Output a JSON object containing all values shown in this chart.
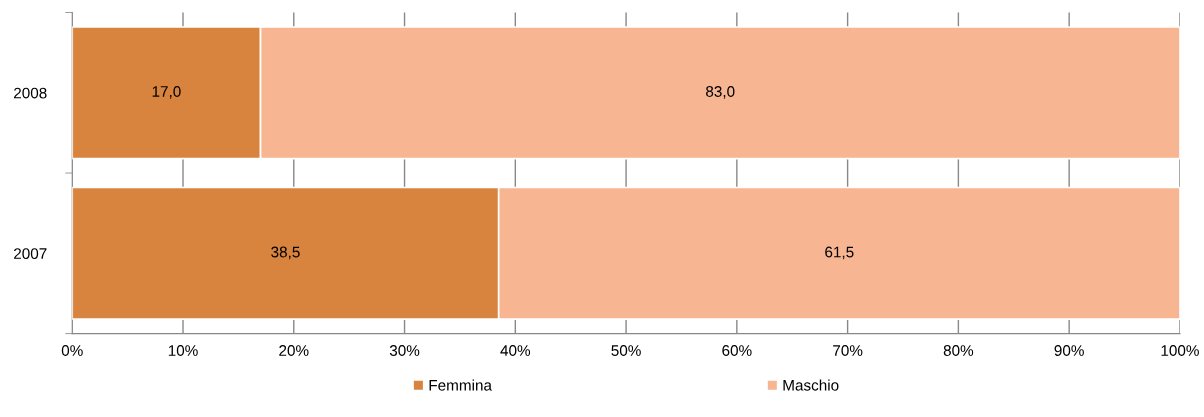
{
  "chart_data": {
    "type": "bar",
    "orientation": "horizontal",
    "stacked": true,
    "categories": [
      "2008",
      "2007"
    ],
    "series": [
      {
        "name": "Femmina",
        "color": "#d9843e",
        "values": [
          17.0,
          38.5
        ],
        "value_labels": [
          "17,0",
          "38,5"
        ]
      },
      {
        "name": "Maschio",
        "color": "#f7b592",
        "values": [
          83.0,
          61.5
        ],
        "value_labels": [
          "83,0",
          "61,5"
        ]
      }
    ],
    "xlim": [
      0,
      100
    ],
    "xticks": [
      {
        "value": 0,
        "label": "0%"
      },
      {
        "value": 10,
        "label": "10%"
      },
      {
        "value": 20,
        "label": "20%"
      },
      {
        "value": 30,
        "label": "30%"
      },
      {
        "value": 40,
        "label": "40%"
      },
      {
        "value": 50,
        "label": "50%"
      },
      {
        "value": 60,
        "label": "60%"
      },
      {
        "value": 70,
        "label": "70%"
      },
      {
        "value": 80,
        "label": "80%"
      },
      {
        "value": 90,
        "label": "90%"
      },
      {
        "value": 100,
        "label": "100%"
      }
    ],
    "grid": "x",
    "legend": "bottom"
  }
}
